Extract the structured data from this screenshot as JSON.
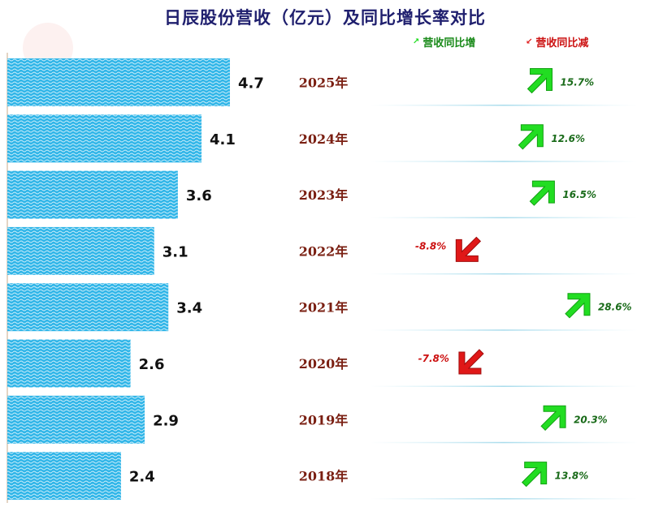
{
  "chart_data": {
    "type": "bar",
    "title": "日辰股份营收（亿元）及同比增长率对比",
    "categories": [
      "2025年",
      "2024年",
      "2023年",
      "2022年",
      "2021年",
      "2020年",
      "2019年",
      "2018年"
    ],
    "values": [
      4.7,
      4.1,
      3.6,
      3.1,
      3.4,
      2.6,
      2.9,
      2.4
    ],
    "value_labels": [
      "4.7",
      "4.1",
      "3.6",
      "3.1",
      "3.4",
      "2.6",
      "2.9",
      "2.4"
    ],
    "growth": [
      15.7,
      12.6,
      16.5,
      -8.8,
      28.6,
      -7.8,
      20.3,
      13.8
    ],
    "growth_labels": [
      "15.7%",
      "12.6%",
      "16.5%",
      "-8.8%",
      "28.6%",
      "-7.8%",
      "20.3%",
      "13.8%"
    ],
    "legend": {
      "up": "营收同比增",
      "down": "营收同比减"
    },
    "legend_placement": "top-right",
    "grid": false
  },
  "colors": {
    "bar": "#2fb5e8",
    "bar_stripe": "#ffffff",
    "year_text": "#7a1f12",
    "up": "#22dd22",
    "up_text": "#1a6b1a",
    "down": "#e01818",
    "down_text": "#cc1111",
    "title": "#1f1f6e"
  },
  "icons": {
    "up": "arrow-up-right-icon",
    "down": "arrow-down-left-icon"
  }
}
